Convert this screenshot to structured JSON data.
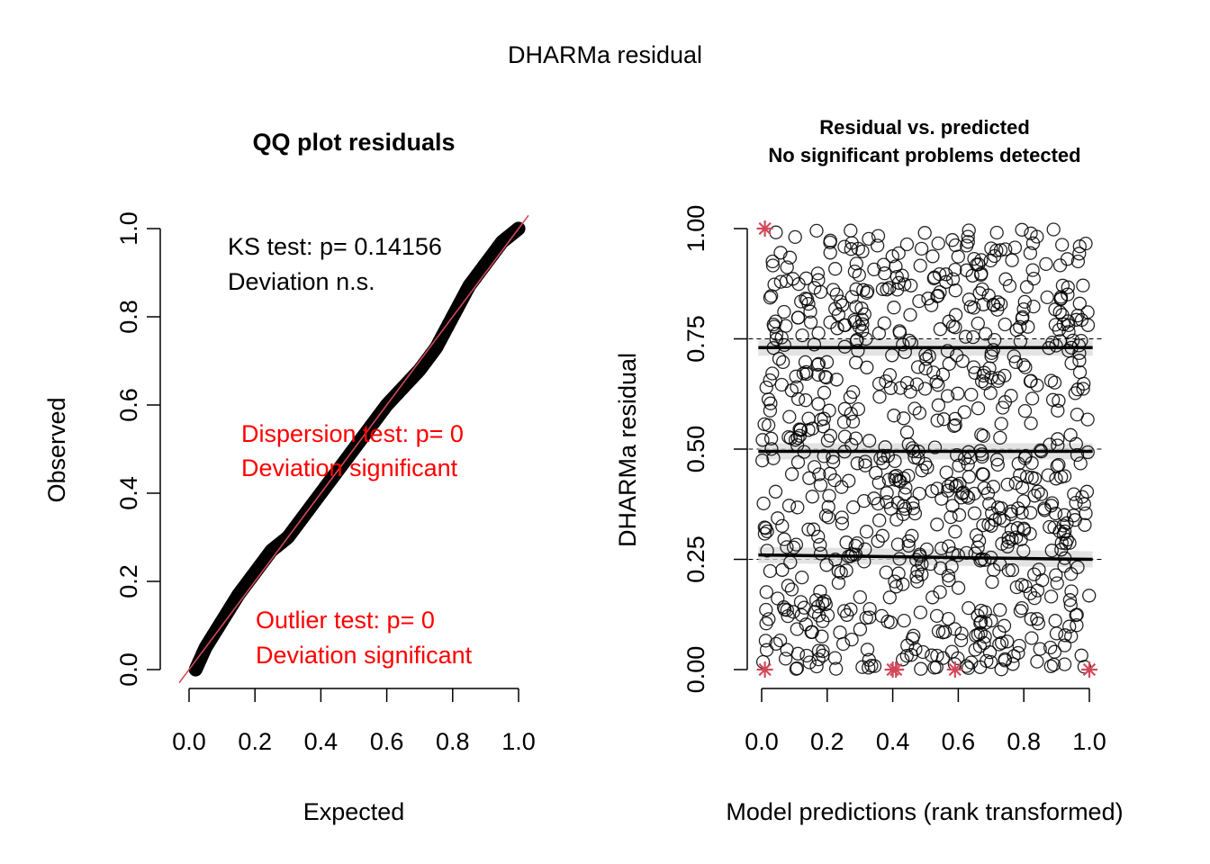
{
  "figure": {
    "title": "DHARMa residual"
  },
  "colors": {
    "points": "#000000",
    "reference_line": "#d1495b",
    "warning_text": "#ff0000",
    "outlier_marker": "#d1495b",
    "band": "#d9d9d9"
  },
  "chart_data": [
    {
      "type": "scatter",
      "title": "QQ plot residuals",
      "xlabel": "Expected",
      "ylabel": "Observed",
      "xlim": [
        0,
        1
      ],
      "ylim": [
        0,
        1
      ],
      "xticks": [
        "0.0",
        "0.2",
        "0.4",
        "0.6",
        "0.8",
        "1.0"
      ],
      "yticks": [
        "0.0",
        "0.2",
        "0.4",
        "0.6",
        "0.8",
        "1.0"
      ],
      "reference_line": {
        "x": [
          0,
          1
        ],
        "y": [
          0,
          1
        ]
      },
      "series": [
        {
          "x": [
            0.02,
            0.05,
            0.1,
            0.15,
            0.2,
            0.25,
            0.3,
            0.35,
            0.4,
            0.45,
            0.5,
            0.55,
            0.6,
            0.65,
            0.7,
            0.75,
            0.8,
            0.85,
            0.9,
            0.95,
            1.0
          ],
          "y": [
            0.0,
            0.05,
            0.11,
            0.17,
            0.22,
            0.27,
            0.3,
            0.35,
            0.4,
            0.45,
            0.5,
            0.55,
            0.6,
            0.64,
            0.68,
            0.73,
            0.8,
            0.87,
            0.92,
            0.97,
            1.0
          ]
        }
      ],
      "annotations": {
        "ks": [
          "KS test: p= 0.14156",
          "Deviation  n.s."
        ],
        "dispersion": [
          "Dispersion test: p= 0",
          "Deviation  significant"
        ],
        "outlier": [
          "Outlier test: p= 0",
          "Deviation  significant"
        ]
      }
    },
    {
      "type": "scatter",
      "title": [
        "Residual vs. predicted",
        "No significant problems detected"
      ],
      "xlabel": "Model predictions (rank transformed)",
      "ylabel": "DHARMa residual",
      "xlim": [
        0,
        1
      ],
      "ylim": [
        0,
        1
      ],
      "xticks": [
        "0.0",
        "0.2",
        "0.4",
        "0.6",
        "0.8",
        "1.0"
      ],
      "yticks": [
        "0.00",
        "0.25",
        "0.50",
        "0.75",
        "1.00"
      ],
      "reference_levels": [
        0.25,
        0.5,
        0.75
      ],
      "quantile_lines": [
        {
          "quantile": 0.25,
          "y_start": 0.26,
          "y_end": 0.25
        },
        {
          "quantile": 0.5,
          "y_start": 0.495,
          "y_end": 0.495
        },
        {
          "quantile": 0.75,
          "y_start": 0.73,
          "y_end": 0.73
        }
      ],
      "outliers": [
        {
          "x": 0.01,
          "y": 1.0
        },
        {
          "x": 0.01,
          "y": 0.0
        },
        {
          "x": 0.4,
          "y": 0.0
        },
        {
          "x": 0.41,
          "y": 0.0
        },
        {
          "x": 0.59,
          "y": 0.0
        },
        {
          "x": 1.0,
          "y": 0.0
        }
      ],
      "points": {
        "n": 850,
        "x_range": [
          0,
          1
        ],
        "y_range": [
          0,
          1
        ]
      }
    }
  ]
}
